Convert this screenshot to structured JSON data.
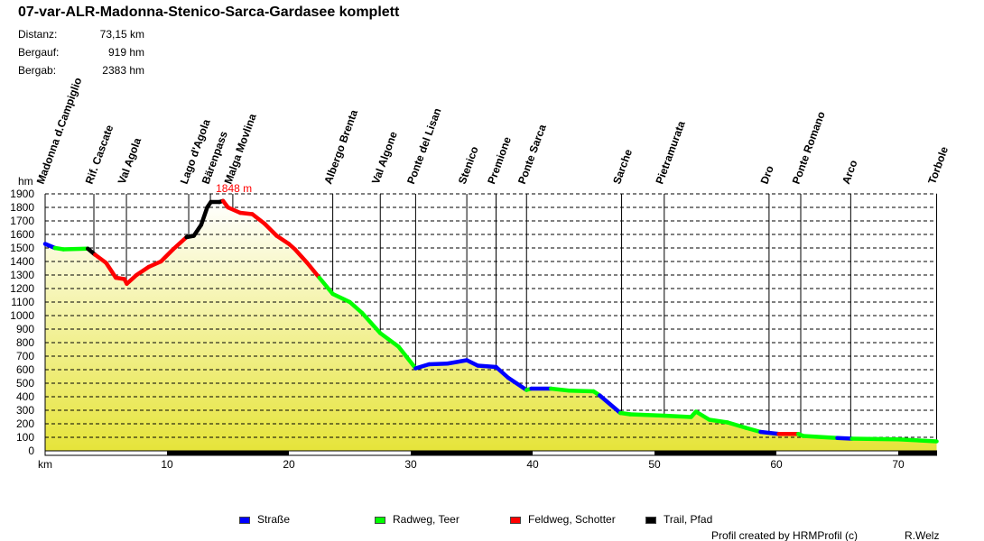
{
  "header": {
    "title": "07-var-ALR-Madonna-Stenico-Sarca-Gardasee komplett",
    "stats": [
      {
        "label": "Distanz:",
        "value": "73,15 km"
      },
      {
        "label": "Bergauf:",
        "value": "919 hm"
      },
      {
        "label": "Bergab:",
        "value": "2383 hm"
      }
    ]
  },
  "chart_data": {
    "type": "area",
    "title": "07-var-ALR-Madonna-Stenico-Sarca-Gardasee komplett",
    "xlabel": "km",
    "ylabel": "hm",
    "xlim": [
      0,
      73.15
    ],
    "ylim": [
      0,
      1900
    ],
    "xticks": [
      10,
      20,
      30,
      40,
      50,
      60,
      70
    ],
    "yticks": [
      0,
      100,
      200,
      300,
      400,
      500,
      600,
      700,
      800,
      900,
      1000,
      1100,
      1200,
      1300,
      1400,
      1500,
      1600,
      1700,
      1800,
      1900
    ],
    "grid": true,
    "max_label": "1848 m",
    "max_point": [
      14.6,
      1848
    ],
    "surface_colors": {
      "road": "#0000ff",
      "bikepath": "#00ff00",
      "gravel": "#ff0000",
      "trail": "#000000"
    },
    "profile": [
      [
        0,
        1530,
        "road"
      ],
      [
        0.8,
        1500,
        "road"
      ],
      [
        1.5,
        1490,
        "bikepath"
      ],
      [
        3.5,
        1495,
        "bikepath"
      ],
      [
        4.1,
        1450,
        "trail"
      ],
      [
        5.0,
        1390,
        "gravel"
      ],
      [
        5.8,
        1280,
        "gravel"
      ],
      [
        6.5,
        1270,
        "gravel"
      ],
      [
        6.7,
        1235,
        "gravel"
      ],
      [
        7.5,
        1300,
        "gravel"
      ],
      [
        8.5,
        1360,
        "gravel"
      ],
      [
        9.5,
        1400,
        "gravel"
      ],
      [
        10.5,
        1490,
        "gravel"
      ],
      [
        11.6,
        1580,
        "gravel"
      ],
      [
        12.2,
        1590,
        "trail"
      ],
      [
        12.8,
        1670,
        "trail"
      ],
      [
        13.3,
        1800,
        "trail"
      ],
      [
        13.6,
        1840,
        "trail"
      ],
      [
        14.3,
        1840,
        "trail"
      ],
      [
        14.6,
        1848,
        "trail"
      ],
      [
        15.0,
        1800,
        "gravel"
      ],
      [
        16.0,
        1760,
        "gravel"
      ],
      [
        17.0,
        1750,
        "gravel"
      ],
      [
        18.0,
        1680,
        "gravel"
      ],
      [
        19.0,
        1590,
        "gravel"
      ],
      [
        20.0,
        1530,
        "gravel"
      ],
      [
        20.5,
        1490,
        "gravel"
      ],
      [
        21.5,
        1390,
        "gravel"
      ],
      [
        22.5,
        1280,
        "gravel"
      ],
      [
        23.6,
        1160,
        "bikepath"
      ],
      [
        25.0,
        1100,
        "bikepath"
      ],
      [
        26.0,
        1020,
        "bikepath"
      ],
      [
        27.5,
        870,
        "bikepath"
      ],
      [
        29.0,
        770,
        "bikepath"
      ],
      [
        30.4,
        610,
        "bikepath"
      ],
      [
        31.5,
        640,
        "road"
      ],
      [
        33.0,
        645,
        "road"
      ],
      [
        34.6,
        670,
        "road"
      ],
      [
        35.5,
        630,
        "road"
      ],
      [
        37.0,
        620,
        "road"
      ],
      [
        38.0,
        540,
        "road"
      ],
      [
        39.5,
        450,
        "road"
      ],
      [
        39.9,
        460,
        "bikepath"
      ],
      [
        41.5,
        460,
        "road"
      ],
      [
        43.0,
        445,
        "bikepath"
      ],
      [
        45.0,
        440,
        "bikepath"
      ],
      [
        45.5,
        410,
        "bikepath"
      ],
      [
        47.2,
        280,
        "road"
      ],
      [
        48.0,
        270,
        "bikepath"
      ],
      [
        50.8,
        260,
        "bikepath"
      ],
      [
        53.0,
        250,
        "bikepath"
      ],
      [
        53.4,
        290,
        "bikepath"
      ],
      [
        54.5,
        230,
        "bikepath"
      ],
      [
        56.0,
        210,
        "bikepath"
      ],
      [
        57.5,
        170,
        "bikepath"
      ],
      [
        58.7,
        140,
        "bikepath"
      ],
      [
        60.2,
        125,
        "road"
      ],
      [
        61.8,
        125,
        "gravel"
      ],
      [
        62.2,
        110,
        "bikepath"
      ],
      [
        65.0,
        95,
        "bikepath"
      ],
      [
        66.2,
        90,
        "road"
      ],
      [
        70.0,
        85,
        "bikepath"
      ],
      [
        73.15,
        70,
        "bikepath"
      ]
    ],
    "waypoints": [
      {
        "name": "Madonna d.Campiglio",
        "km": 0
      },
      {
        "name": "Rif. Cascate",
        "km": 4.0
      },
      {
        "name": "Val Agola",
        "km": 6.67
      },
      {
        "name": "Lago d'Agola",
        "km": 11.78
      },
      {
        "name": "Bärenpass",
        "km": 13.56
      },
      {
        "name": "Malga Movlina",
        "km": 15.4
      },
      {
        "name": "Albergo Brenta",
        "km": 23.6
      },
      {
        "name": "Val Algone",
        "km": 27.5
      },
      {
        "name": "Ponte del Lisan",
        "km": 30.4
      },
      {
        "name": "Stenico",
        "km": 34.6
      },
      {
        "name": "Premione",
        "km": 37.0
      },
      {
        "name": "Ponte Sarca",
        "km": 39.5
      },
      {
        "name": "Sarche",
        "km": 47.3
      },
      {
        "name": "Pietramurata",
        "km": 50.8
      },
      {
        "name": "Dro",
        "km": 59.4
      },
      {
        "name": "Ponte Romano",
        "km": 62.0
      },
      {
        "name": "Arco",
        "km": 66.1
      },
      {
        "name": "Torbole",
        "km": 73.15
      }
    ]
  },
  "legend": [
    {
      "label": "Straße",
      "color": "#0000ff"
    },
    {
      "label": "Radweg, Teer",
      "color": "#00ff00"
    },
    {
      "label": "Feldweg, Schotter",
      "color": "#ff0000"
    },
    {
      "label": "Trail, Pfad",
      "color": "#000000"
    }
  ],
  "footer": {
    "credit": "Profil created by HRMProfil (c)",
    "author": "R.Welz"
  }
}
